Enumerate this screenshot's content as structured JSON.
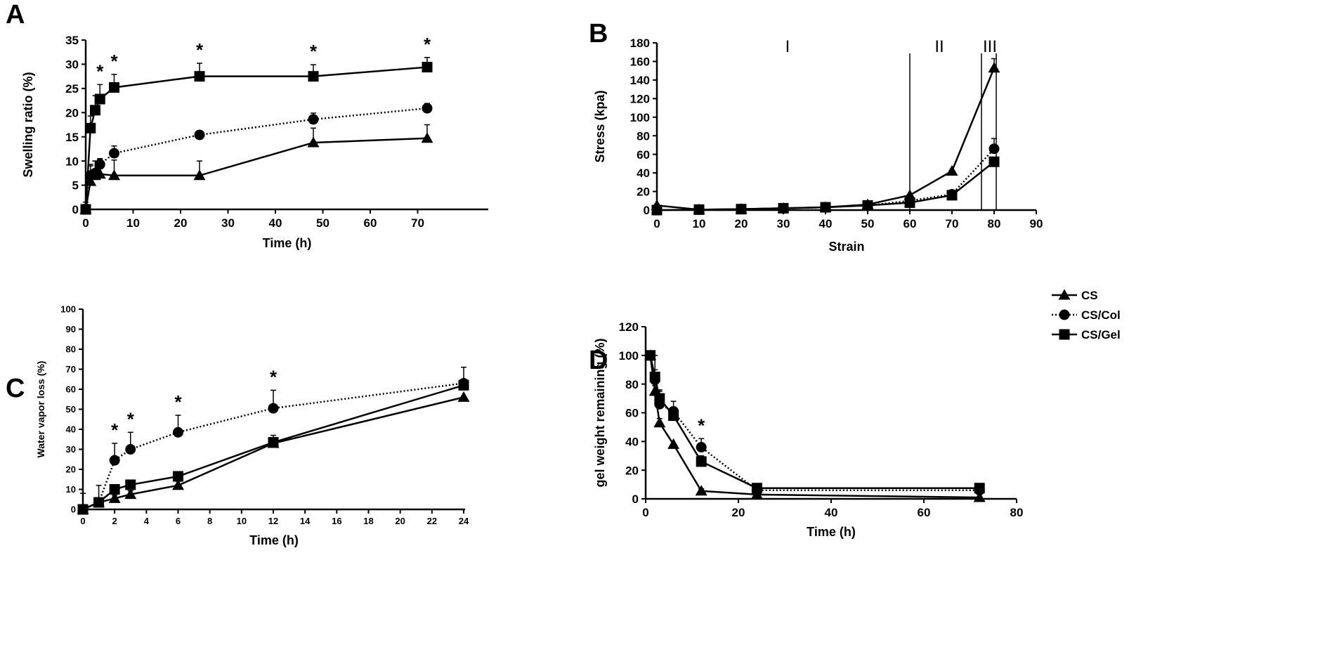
{
  "chart_data": [
    {
      "panel": "A",
      "type": "line",
      "xlabel": "Time (h)",
      "ylabel": "Swelling ratio (%)",
      "xlim": [
        0,
        72
      ],
      "xticks": [
        0,
        10,
        20,
        30,
        40,
        50,
        60,
        70
      ],
      "ylim": [
        0,
        35
      ],
      "yticks": [
        0,
        5,
        10,
        15,
        20,
        25,
        30,
        35
      ],
      "grid": false,
      "series": [
        {
          "marker": "triangle",
          "dash": false,
          "x": [
            0,
            1,
            2,
            3,
            6,
            24,
            48,
            72
          ],
          "y": [
            0,
            5.8,
            7,
            7.3,
            7,
            7,
            13.8,
            14.7
          ],
          "errors": [
            1.5,
            3.5,
            3,
            3,
            3.2,
            3,
            3,
            2.8
          ]
        },
        {
          "marker": "circle",
          "dash": true,
          "x": [
            0,
            1,
            2,
            3,
            6,
            24,
            48,
            72
          ],
          "y": [
            0,
            7,
            7.5,
            9.3,
            11.6,
            15.4,
            18.6,
            20.9
          ],
          "errors": [
            1,
            2,
            2.5,
            1.2,
            1.5,
            0.3,
            1.3,
            1
          ]
        },
        {
          "marker": "square",
          "dash": false,
          "x": [
            0,
            1,
            2,
            3,
            6,
            24,
            48,
            72
          ],
          "y": [
            0,
            16.8,
            20.5,
            22.8,
            25.2,
            27.5,
            27.5,
            29.4
          ],
          "errors": [
            1,
            2.5,
            3,
            3,
            2.7,
            2.7,
            2.4,
            2
          ]
        }
      ],
      "significance": {
        "symbol": "*",
        "x": [
          3,
          6,
          24,
          48,
          72
        ]
      }
    },
    {
      "panel": "B",
      "type": "line",
      "xlabel": "Strain",
      "ylabel": "Stress (kpa)",
      "xlim": [
        0,
        90
      ],
      "xticks": [
        0,
        10,
        20,
        30,
        40,
        50,
        60,
        70,
        80,
        90
      ],
      "ylim": [
        0,
        180
      ],
      "yticks": [
        0,
        20,
        40,
        60,
        80,
        100,
        120,
        140,
        160,
        180
      ],
      "grid": false,
      "series": [
        {
          "marker": "triangle",
          "dash": false,
          "x": [
            0,
            10,
            20,
            30,
            40,
            50,
            60,
            70,
            80
          ],
          "y": [
            5,
            0.5,
            1,
            2,
            3,
            6,
            16,
            42,
            153
          ],
          "errors": [
            0,
            0,
            0,
            0,
            0,
            0,
            0,
            0,
            10
          ]
        },
        {
          "marker": "circle",
          "dash": true,
          "x": [
            0,
            10,
            20,
            30,
            40,
            50,
            60,
            70,
            80
          ],
          "y": [
            0,
            0.5,
            1,
            2,
            3,
            5,
            10,
            17,
            66
          ],
          "errors": [
            0,
            0,
            0,
            0,
            0,
            0,
            0,
            0,
            11
          ]
        },
        {
          "marker": "square",
          "dash": false,
          "x": [
            0,
            10,
            20,
            30,
            40,
            50,
            60,
            70,
            80
          ],
          "y": [
            0,
            0.5,
            1,
            2,
            3,
            5,
            8,
            16,
            52
          ],
          "errors": [
            0,
            0,
            0,
            0,
            0,
            0,
            0,
            0,
            0
          ]
        }
      ],
      "vlines": [
        60,
        77,
        80.5
      ],
      "region_labels": [
        {
          "text": "I",
          "x": 31
        },
        {
          "text": "II",
          "x": 67
        },
        {
          "text": "III",
          "x": 79
        }
      ]
    },
    {
      "panel": "C",
      "type": "line",
      "xlabel": "Time (h)",
      "ylabel": "Water vapor loss (%)",
      "xlim": [
        0,
        24
      ],
      "xticks": [
        0,
        2,
        4,
        6,
        8,
        10,
        12,
        14,
        16,
        18,
        20,
        22,
        24
      ],
      "ylim": [
        0,
        100
      ],
      "yticks": [
        0,
        10,
        20,
        30,
        40,
        50,
        60,
        70,
        80,
        90,
        100
      ],
      "grid": false,
      "series": [
        {
          "marker": "triangle",
          "dash": false,
          "x": [
            0,
            1,
            2,
            3,
            6,
            12,
            24
          ],
          "y": [
            0,
            3.5,
            5.5,
            7.5,
            12,
            33,
            56
          ],
          "errors": [
            8,
            0,
            1.5,
            1.8,
            2,
            2,
            0
          ]
        },
        {
          "marker": "circle",
          "dash": true,
          "x": [
            0,
            1,
            2,
            3,
            6,
            12,
            24
          ],
          "y": [
            0,
            3.5,
            24.5,
            30,
            38.5,
            50.5,
            63
          ],
          "errors": [
            0,
            8.5,
            8.5,
            8.5,
            8.5,
            9,
            8
          ]
        },
        {
          "marker": "square",
          "dash": false,
          "x": [
            0,
            1,
            2,
            3,
            6,
            12,
            24
          ],
          "y": [
            0,
            3.5,
            10,
            12.3,
            16.5,
            33.5,
            62
          ],
          "errors": [
            0,
            0,
            0,
            0,
            0,
            3.5,
            0
          ]
        }
      ],
      "significance": {
        "symbol": "*",
        "x": [
          2,
          3,
          6,
          12
        ]
      }
    },
    {
      "panel": "D",
      "type": "line",
      "xlabel": "Time (h)",
      "ylabel": "gel weight remaining (%)",
      "xlim": [
        0,
        80
      ],
      "xticks": [
        0,
        20,
        40,
        60,
        80
      ],
      "ylim": [
        0,
        120
      ],
      "yticks": [
        0,
        20,
        40,
        60,
        80,
        100,
        120
      ],
      "grid": false,
      "legend_position": "top-right",
      "series": [
        {
          "name": "CS",
          "marker": "triangle",
          "dash": false,
          "x": [
            1,
            2,
            3,
            6,
            12,
            24,
            72
          ],
          "y": [
            100,
            75,
            53,
            38,
            5.5,
            3,
            1
          ],
          "errors": [
            0,
            4,
            3,
            0,
            1.5,
            0,
            0
          ]
        },
        {
          "name": "CS/Col",
          "marker": "circle",
          "dash": true,
          "x": [
            1,
            2,
            3,
            6,
            12,
            24,
            72
          ],
          "y": [
            100,
            83,
            66,
            61,
            36,
            6,
            6
          ],
          "errors": [
            0,
            7,
            10,
            7,
            6,
            0,
            0
          ]
        },
        {
          "name": "CS/Gel",
          "marker": "square",
          "dash": false,
          "x": [
            1,
            2,
            3,
            6,
            12,
            24,
            72
          ],
          "y": [
            100,
            85,
            70,
            58,
            26,
            7.5,
            7.5
          ],
          "errors": [
            0,
            15,
            5,
            6,
            4,
            0,
            0
          ]
        }
      ],
      "significance": {
        "symbol": "*",
        "x": [
          12
        ]
      }
    }
  ]
}
